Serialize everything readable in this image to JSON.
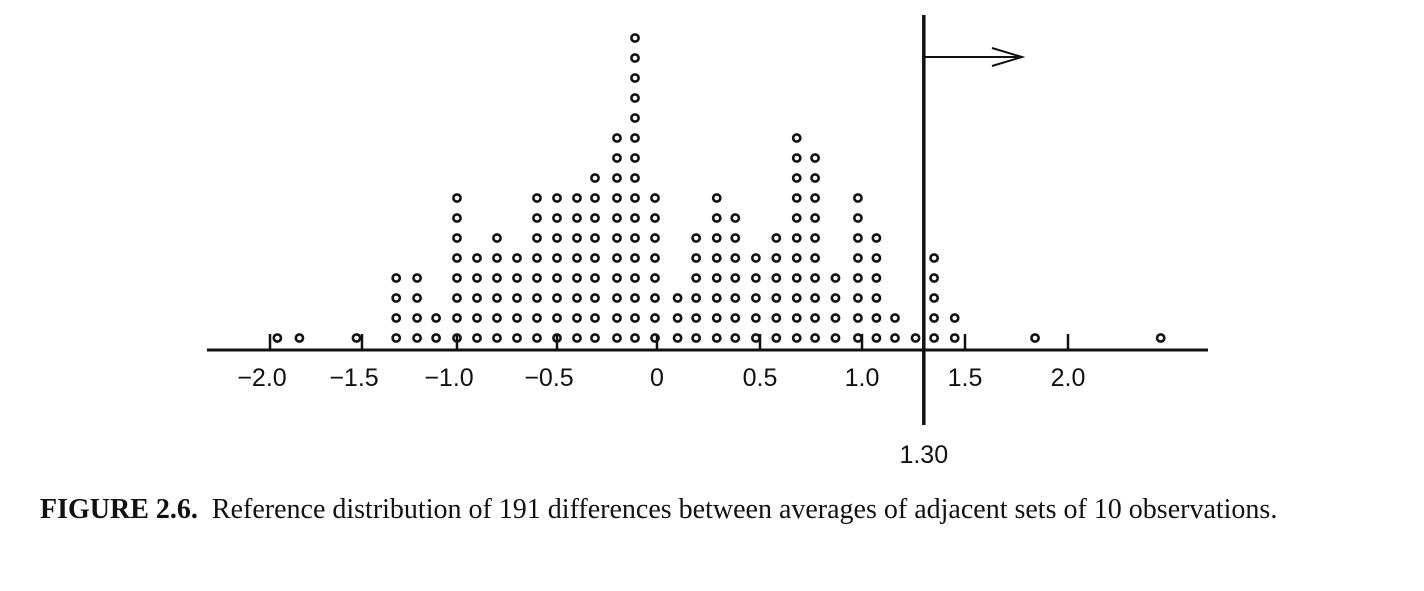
{
  "chart_data": {
    "type": "scatter",
    "subtype": "dot-plot",
    "title": "",
    "xlabel": "",
    "ylabel": "",
    "xlim": [
      -2.2,
      2.7
    ],
    "x_ticks": [
      -2.0,
      -1.5,
      -1.0,
      -0.5,
      0,
      0.5,
      1.0,
      1.5,
      2.0
    ],
    "x_tick_labels": [
      "−2.0",
      "−1.5",
      "−1.0",
      "−0.5",
      "0",
      "0.5",
      "1.0",
      "1.5",
      "2.0"
    ],
    "bins": [
      {
        "x": -1.96,
        "count": 1
      },
      {
        "x": -1.84,
        "count": 1
      },
      {
        "x": -1.53,
        "count": 1
      },
      {
        "x": -1.32,
        "count": 4
      },
      {
        "x": -1.21,
        "count": 4
      },
      {
        "x": -1.11,
        "count": 2
      },
      {
        "x": -1.0,
        "count": 8
      },
      {
        "x": -0.9,
        "count": 5
      },
      {
        "x": -0.8,
        "count": 6
      },
      {
        "x": -0.7,
        "count": 5
      },
      {
        "x": -0.6,
        "count": 8
      },
      {
        "x": -0.5,
        "count": 8
      },
      {
        "x": -0.4,
        "count": 8
      },
      {
        "x": -0.31,
        "count": 9
      },
      {
        "x": -0.2,
        "count": 11
      },
      {
        "x": -0.11,
        "count": 16
      },
      {
        "x": -0.01,
        "count": 8
      },
      {
        "x": 0.1,
        "count": 3
      },
      {
        "x": 0.19,
        "count": 6
      },
      {
        "x": 0.29,
        "count": 8
      },
      {
        "x": 0.38,
        "count": 7
      },
      {
        "x": 0.48,
        "count": 5
      },
      {
        "x": 0.58,
        "count": 6
      },
      {
        "x": 0.68,
        "count": 11
      },
      {
        "x": 0.77,
        "count": 10
      },
      {
        "x": 0.87,
        "count": 4
      },
      {
        "x": 0.98,
        "count": 8
      },
      {
        "x": 1.07,
        "count": 6
      },
      {
        "x": 1.16,
        "count": 2
      },
      {
        "x": 1.26,
        "count": 1
      },
      {
        "x": 1.35,
        "count": 5
      },
      {
        "x": 1.45,
        "count": 2
      },
      {
        "x": 1.84,
        "count": 1
      },
      {
        "x": 2.45,
        "count": 1
      }
    ],
    "total_count": 191,
    "reference_line": {
      "x": 1.3,
      "label": "1.30",
      "arrow_direction": "right"
    },
    "grid": false
  },
  "caption": {
    "label": "FIGURE 2.6.",
    "text": "Reference distribution of 191 differences between averages of adjacent sets of 10 observations."
  }
}
